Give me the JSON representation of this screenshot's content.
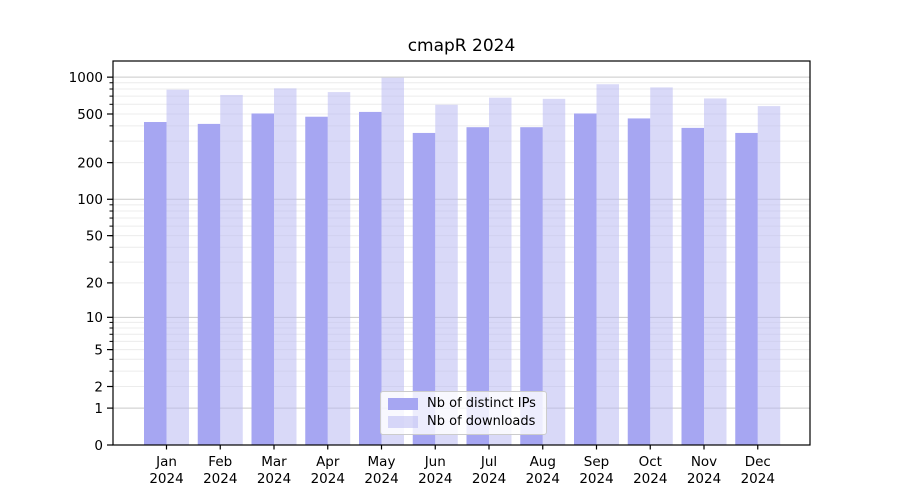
{
  "figure": {
    "title": "cmapR 2024"
  },
  "chart_data": {
    "type": "bar",
    "title": "cmapR 2024",
    "yscale": "log1p",
    "ylabel": "",
    "xlabel": "",
    "ylim": [
      0,
      1100
    ],
    "y_ticks": [
      0,
      1,
      2,
      5,
      10,
      20,
      50,
      100,
      200,
      500,
      1000
    ],
    "grid": "horizontal major and minor gridlines",
    "legend_position": "lower center",
    "x_year": "2024",
    "x_months": [
      "Jan",
      "Feb",
      "Mar",
      "Apr",
      "May",
      "Jun",
      "Jul",
      "Aug",
      "Sep",
      "Oct",
      "Nov",
      "Dec"
    ],
    "categories": [
      "Jan 2024",
      "Feb 2024",
      "Mar 2024",
      "Apr 2024",
      "May 2024",
      "Jun 2024",
      "Jul 2024",
      "Aug 2024",
      "Sep 2024",
      "Oct 2024",
      "Nov 2024",
      "Dec 2024"
    ],
    "series": [
      {
        "name": "Nb of distinct IPs",
        "color": "#a6a6f2",
        "opacity": 1,
        "values": [
          430,
          415,
          505,
          475,
          520,
          350,
          390,
          390,
          505,
          460,
          385,
          350
        ]
      },
      {
        "name": "Nb of downloads",
        "color": "#b9b9f3",
        "opacity": 0.55,
        "values": [
          790,
          715,
          810,
          755,
          990,
          595,
          680,
          665,
          875,
          825,
          670,
          580
        ]
      }
    ],
    "colors": {
      "grid_major": "#c9c9c9",
      "grid_minor": "#ececec",
      "spine": "#000000",
      "text": "#000000"
    }
  }
}
